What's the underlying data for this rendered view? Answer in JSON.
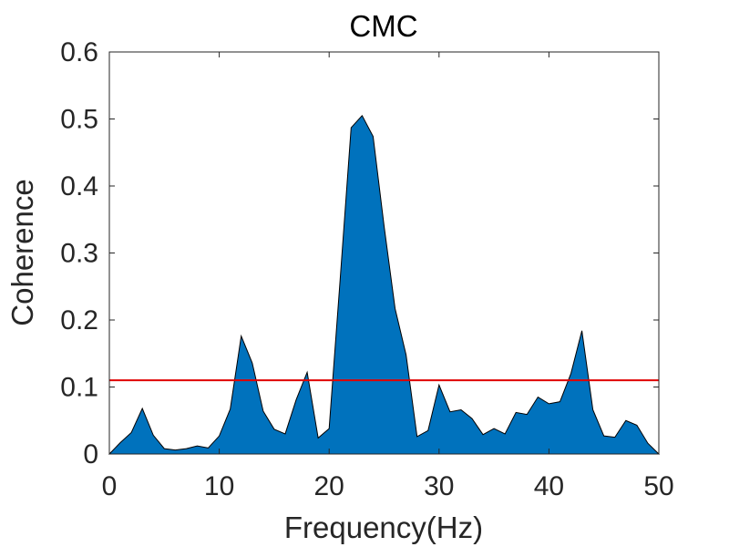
{
  "chart_data": {
    "type": "area",
    "title": "CMC",
    "xlabel": "Frequency(Hz)",
    "ylabel": "Coherence",
    "xlim": [
      0,
      50
    ],
    "ylim": [
      0,
      0.6
    ],
    "x_ticks": [
      0,
      10,
      20,
      30,
      40,
      50
    ],
    "y_ticks": [
      0,
      0.1,
      0.2,
      0.3,
      0.4,
      0.5,
      0.6
    ],
    "x_tick_labels": [
      "0",
      "10",
      "20",
      "30",
      "40",
      "50"
    ],
    "y_tick_labels": [
      "0",
      "0.1",
      "0.2",
      "0.3",
      "0.4",
      "0.5",
      "0.6"
    ],
    "grid": false,
    "series": [
      {
        "fill_color": "#0072BD",
        "x": [
          0,
          1,
          2,
          3,
          4,
          5,
          6,
          7,
          8,
          9,
          10,
          11,
          12,
          13,
          14,
          15,
          16,
          17,
          18,
          19,
          20,
          21,
          22,
          23,
          24,
          25,
          26,
          27,
          28,
          29,
          30,
          31,
          32,
          33,
          34,
          35,
          36,
          37,
          38,
          39,
          40,
          41,
          42,
          43,
          44,
          45,
          46,
          47,
          48,
          49,
          50
        ],
        "y": [
          0.0,
          0.017,
          0.032,
          0.068,
          0.028,
          0.008,
          0.006,
          0.008,
          0.012,
          0.009,
          0.027,
          0.067,
          0.176,
          0.136,
          0.064,
          0.037,
          0.03,
          0.081,
          0.122,
          0.024,
          0.038,
          0.26,
          0.487,
          0.505,
          0.474,
          0.34,
          0.217,
          0.148,
          0.026,
          0.035,
          0.103,
          0.063,
          0.066,
          0.053,
          0.029,
          0.038,
          0.03,
          0.062,
          0.059,
          0.085,
          0.075,
          0.078,
          0.12,
          0.184,
          0.066,
          0.027,
          0.025,
          0.05,
          0.043,
          0.016,
          0.0
        ]
      }
    ],
    "threshold": {
      "y": 0.11,
      "color": "#E00000"
    }
  }
}
